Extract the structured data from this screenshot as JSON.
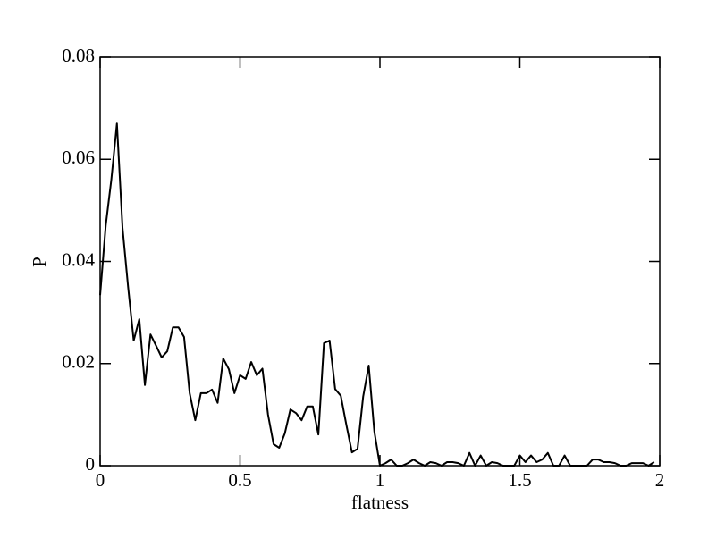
{
  "chart_data": {
    "type": "line",
    "xlabel": "flatness",
    "ylabel": "P",
    "x": [
      0,
      0.02,
      0.04,
      0.06,
      0.08,
      0.1,
      0.12,
      0.14,
      0.16,
      0.18,
      0.2,
      0.22,
      0.24,
      0.26,
      0.28,
      0.3,
      0.32,
      0.34,
      0.36,
      0.38,
      0.4,
      0.42,
      0.44,
      0.46,
      0.48,
      0.5,
      0.52,
      0.54,
      0.56,
      0.58,
      0.6,
      0.62,
      0.64,
      0.66,
      0.68,
      0.7,
      0.72,
      0.74,
      0.76,
      0.78,
      0.8,
      0.82,
      0.84,
      0.86,
      0.88,
      0.9,
      0.92,
      0.94,
      0.96,
      0.98,
      1,
      1.02,
      1.04,
      1.06,
      1.08,
      1.1,
      1.12,
      1.14,
      1.16,
      1.18,
      1.2,
      1.22,
      1.24,
      1.26,
      1.28,
      1.3,
      1.32,
      1.34,
      1.36,
      1.38,
      1.4,
      1.42,
      1.44,
      1.46,
      1.48,
      1.5,
      1.52,
      1.54,
      1.56,
      1.58,
      1.6,
      1.62,
      1.64,
      1.66,
      1.68,
      1.7,
      1.72,
      1.74,
      1.76,
      1.78,
      1.8,
      1.82,
      1.84,
      1.86,
      1.88,
      1.9,
      1.92,
      1.94,
      1.96,
      1.98
    ],
    "series": [
      {
        "color": "#000000",
        "values": [
          0.0334,
          0.047,
          0.056,
          0.067,
          0.0466,
          0.035,
          0.0245,
          0.0287,
          0.0158,
          0.0257,
          0.0235,
          0.0212,
          0.0224,
          0.0271,
          0.0271,
          0.0252,
          0.0142,
          0.0089,
          0.0142,
          0.0142,
          0.0149,
          0.0123,
          0.021,
          0.0189,
          0.0142,
          0.0177,
          0.017,
          0.0203,
          0.0177,
          0.019,
          0.01,
          0.0042,
          0.0035,
          0.0063,
          0.011,
          0.0103,
          0.0089,
          0.0116,
          0.0116,
          0.0061,
          0.024,
          0.0245,
          0.015,
          0.0137,
          0.008,
          0.0026,
          0.0033,
          0.0135,
          0.0196,
          0.0067,
          0,
          0.0005,
          0.0012,
          0,
          0,
          0.0005,
          0.0012,
          0.0005,
          0,
          0.0007,
          0.0005,
          0,
          0.0007,
          0.0007,
          0.0005,
          0,
          0.0025,
          0,
          0.002,
          0,
          0.0007,
          0.0005,
          0,
          0,
          0,
          0.002,
          0.0007,
          0.002,
          0.0007,
          0.0012,
          0.0025,
          0,
          0,
          0.002,
          0,
          0,
          0,
          0,
          0.0012,
          0.0012,
          0.0007,
          0.0007,
          0.0005,
          0,
          0,
          0.0005,
          0.0005,
          0.0005,
          0,
          0.0007
        ]
      }
    ],
    "xlim": [
      0,
      2
    ],
    "xticks": [
      0,
      0.5,
      1,
      1.5,
      2
    ],
    "ylim": [
      0,
      0.08
    ],
    "yticks": [
      0,
      0.02,
      0.04,
      0.06,
      0.08
    ]
  }
}
